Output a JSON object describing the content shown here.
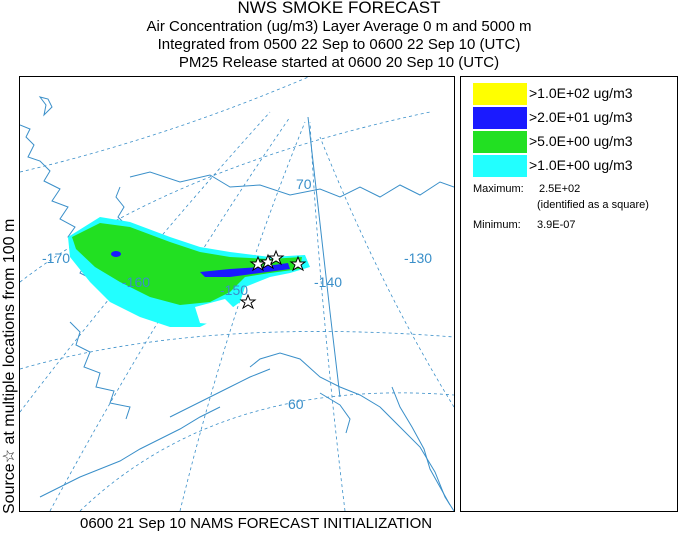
{
  "header": {
    "title": "NWS SMOKE FORECAST",
    "line2": "Air Concentration (ug/m3) Layer Average    0 m and  5000 m",
    "line3": "Integrated from 0500 22 Sep to 0600 22 Sep 10 (UTC)",
    "line4": "PM25 Release started at 0600 20 Sep 10 (UTC)"
  },
  "side_label": "Source☆  at multiple locations   from   100 m",
  "bottom_label": "0600 21 Sep 10 NAMS FORECAST INITIALIZATION",
  "legend": {
    "items": [
      {
        "label": ">1.0E+02 ug/m3",
        "color": "#ffff00"
      },
      {
        "label": ">2.0E+01 ug/m3",
        "color": "#1a1aff"
      },
      {
        "label": ">5.0E+00 ug/m3",
        "color": "#22e022"
      },
      {
        "label": ">1.0E+00 ug/m3",
        "color": "#22ffff"
      }
    ],
    "maximum_label": "Maximum:",
    "maximum_value": "2.5E+02",
    "maximum_note": "(identified as a square)",
    "minimum_label": "Minimum:",
    "minimum_value": "3.9E-07"
  },
  "map": {
    "graticule_color": "#3a8fc9",
    "labels": {
      "lon_170": "-170",
      "lon_160": "-160",
      "lon_150": "-150",
      "lon_140": "-140",
      "lon_130": "-130",
      "lat_70": "70",
      "lat_60": "60"
    }
  }
}
